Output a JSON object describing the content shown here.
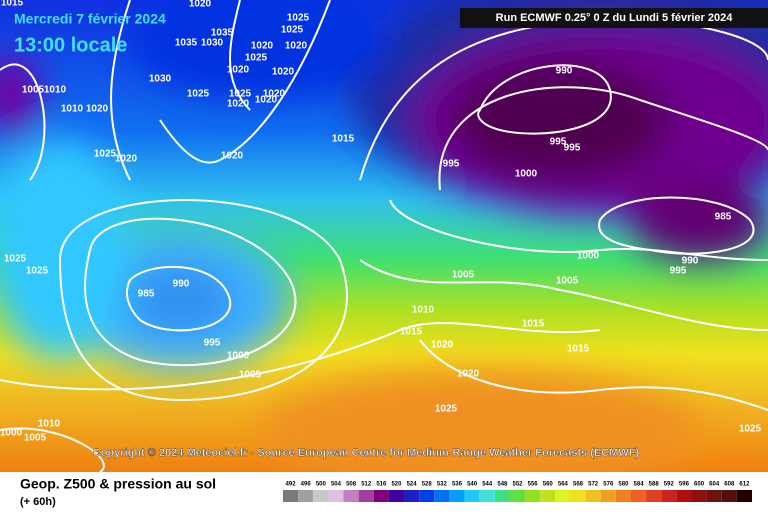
{
  "header": {
    "date": "Mercredi 7 février 2024",
    "time": "13:00 locale",
    "run": "Run ECMWF 0.25° 0 Z du Lundi 5 février 2024"
  },
  "copyright": "Copyright © 2024 Meteociel.fr - Source European Centre for Medium-Range Weather Forecasts (ECMWF)",
  "footer": {
    "title": "Geop. Z500 & pression au sol",
    "lead": "(+ 60h)"
  },
  "isobar_labels": [
    "1020",
    "1025",
    "1035",
    "1025",
    "1035",
    "1030",
    "1020",
    "1020",
    "1025",
    "1030",
    "1020",
    "1020",
    "1025",
    "1025",
    "1020",
    "1020",
    "1020",
    "1005",
    "1010",
    "1010",
    "1020",
    "1025",
    "1020",
    "1020",
    "1015",
    "990",
    "995",
    "995",
    "995",
    "1000",
    "985",
    "1025",
    "1025",
    "990",
    "985",
    "995",
    "1000",
    "1005",
    "1005",
    "1000",
    "990",
    "995",
    "1005",
    "1010",
    "1015",
    "1020",
    "1015",
    "1015",
    "1020",
    "1025",
    "1010",
    "1000",
    "1005",
    "1025",
    "1015"
  ],
  "colorbar": {
    "ticks": [
      "492",
      "496",
      "500",
      "504",
      "508",
      "512",
      "516",
      "520",
      "524",
      "528",
      "532",
      "536",
      "540",
      "544",
      "548",
      "552",
      "556",
      "560",
      "564",
      "568",
      "572",
      "576",
      "580",
      "584",
      "588",
      "592",
      "596",
      "600",
      "604",
      "608",
      "612"
    ],
    "colors": [
      "#7a7a7a",
      "#a0a0a0",
      "#c8c8c8",
      "#e0c0e0",
      "#c080c0",
      "#a040a0",
      "#800080",
      "#4000a0",
      "#2020c0",
      "#0040e0",
      "#0070f0",
      "#00a0ff",
      "#20c8ff",
      "#40e0e0",
      "#40e080",
      "#60e040",
      "#90e020",
      "#c0e020",
      "#e0f020",
      "#f0e020",
      "#f0c020",
      "#f0a020",
      "#f08020",
      "#f06020",
      "#e04020",
      "#d02020",
      "#b01010",
      "#901010",
      "#701010",
      "#501010",
      "#200000"
    ]
  }
}
